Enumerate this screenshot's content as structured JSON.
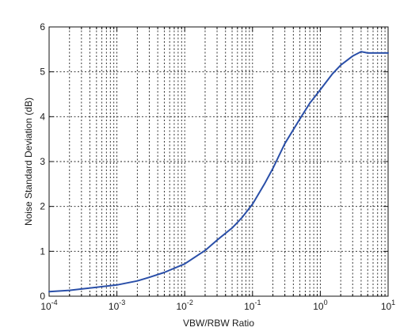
{
  "chart_data": {
    "type": "line",
    "title": "",
    "xlabel": "VBW/RBW Ratio",
    "ylabel": "Noise Standard Deviation (dB)",
    "x_scale": "log",
    "xlim": [
      0.0001,
      10
    ],
    "ylim": [
      0,
      6
    ],
    "grid": true,
    "x_ticks": [
      {
        "base": "10",
        "exp": "-4",
        "value": 0.0001
      },
      {
        "base": "10",
        "exp": "-3",
        "value": 0.001
      },
      {
        "base": "10",
        "exp": "-2",
        "value": 0.01
      },
      {
        "base": "10",
        "exp": "-1",
        "value": 0.1
      },
      {
        "base": "10",
        "exp": "0",
        "value": 1
      },
      {
        "base": "10",
        "exp": "1",
        "value": 10
      }
    ],
    "y_ticks": [
      "0",
      "1",
      "2",
      "3",
      "4",
      "5",
      "6"
    ],
    "series": [
      {
        "color": "#2a4fa8",
        "x": [
          0.0001,
          0.0002,
          0.0003,
          0.0005,
          0.001,
          0.002,
          0.003,
          0.005,
          0.01,
          0.02,
          0.03,
          0.05,
          0.07,
          0.1,
          0.15,
          0.2,
          0.3,
          0.5,
          0.7,
          1,
          1.5,
          2,
          3,
          4,
          5,
          7,
          10
        ],
        "y": [
          0.1,
          0.13,
          0.16,
          0.2,
          0.25,
          0.34,
          0.42,
          0.53,
          0.72,
          1.02,
          1.25,
          1.52,
          1.75,
          2.05,
          2.5,
          2.85,
          3.4,
          3.95,
          4.3,
          4.6,
          4.95,
          5.15,
          5.35,
          5.45,
          5.42,
          5.42,
          5.42
        ]
      }
    ]
  }
}
